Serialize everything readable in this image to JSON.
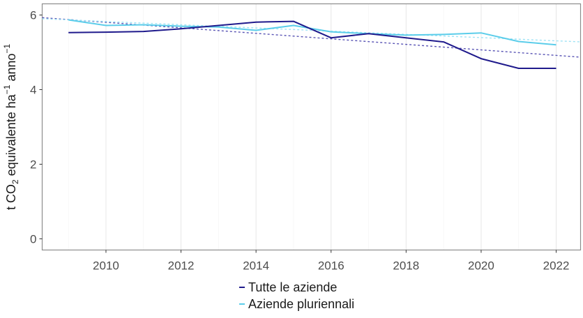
{
  "chart_data": {
    "type": "line",
    "title": "",
    "xlabel": "",
    "ylabel": "t CO2 equivalente ha^-1 anno^-1",
    "ylabel_parts": {
      "pre": "t CO",
      "sub": "2",
      "mid": " equivalente ha",
      "sup1": "−1",
      "mid2": " anno",
      "sup2": "−1"
    },
    "x": [
      2009,
      2010,
      2011,
      2012,
      2013,
      2014,
      2015,
      2016,
      2017,
      2018,
      2019,
      2020,
      2021,
      2022
    ],
    "xlim": [
      2008.3,
      2022.65
    ],
    "ylim": [
      -0.3,
      6.3
    ],
    "xticks": [
      2010,
      2012,
      2014,
      2016,
      2018,
      2020,
      2022
    ],
    "yticks": [
      0,
      2,
      4,
      6
    ],
    "grid": true,
    "legend_position": "bottom",
    "series": [
      {
        "name": "Tutte le aziende",
        "color": "#1f1a8c",
        "values": [
          5.53,
          5.54,
          5.56,
          5.63,
          5.72,
          5.81,
          5.83,
          5.39,
          5.5,
          5.39,
          5.28,
          4.83,
          4.57,
          4.57
        ],
        "trend": {
          "start": [
            2008.3,
            5.93
          ],
          "end": [
            2022.65,
            4.87
          ],
          "color": "#5a55b5",
          "style": "dotted"
        }
      },
      {
        "name": "Aziende pluriennali",
        "color": "#5bcdea",
        "values": [
          5.87,
          5.72,
          5.74,
          5.7,
          5.68,
          5.59,
          5.72,
          5.55,
          5.5,
          5.46,
          5.48,
          5.52,
          5.29,
          5.2
        ],
        "trend": {
          "start": [
            2008.3,
            5.9
          ],
          "end": [
            2022.65,
            5.28
          ],
          "color": "#9ee3f5",
          "style": "dotted"
        }
      }
    ]
  },
  "legend": {
    "items": [
      {
        "label": "Tutte le aziende",
        "color": "#1f1a8c"
      },
      {
        "label": "Aziende pluriennali",
        "color": "#5bcdea"
      }
    ]
  }
}
